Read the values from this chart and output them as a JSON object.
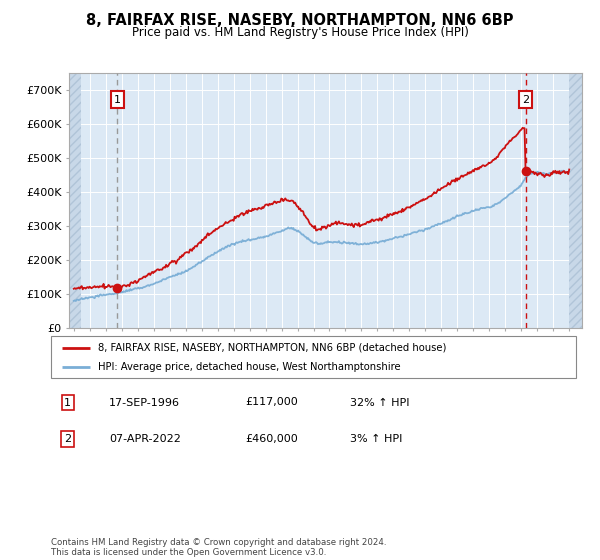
{
  "title": "8, FAIRFAX RISE, NASEBY, NORTHAMPTON, NN6 6BP",
  "subtitle": "Price paid vs. HM Land Registry's House Price Index (HPI)",
  "legend_line1": "8, FAIRFAX RISE, NASEBY, NORTHAMPTON, NN6 6BP (detached house)",
  "legend_line2": "HPI: Average price, detached house, West Northamptonshire",
  "annotation1_date": "17-SEP-1996",
  "annotation1_price": "£117,000",
  "annotation1_hpi": "32% ↑ HPI",
  "annotation2_date": "07-APR-2022",
  "annotation2_price": "£460,000",
  "annotation2_hpi": "3% ↑ HPI",
  "footer": "Contains HM Land Registry data © Crown copyright and database right 2024.\nThis data is licensed under the Open Government Licence v3.0.",
  "sale1_year": 1996.72,
  "sale1_value": 117000,
  "sale2_year": 2022.27,
  "sale2_value": 460000,
  "hpi_color": "#7aaed6",
  "price_color": "#cc1111",
  "vline1_color": "#aaaaaa",
  "vline2_color": "#cc1111",
  "annotation_border_color": "#cc1111",
  "background_plot": "#dce9f5",
  "background_hatch": "#c8d8e8",
  "ylim_min": 0,
  "ylim_max": 750000,
  "xlim_min": 1993.7,
  "xlim_max": 2025.8,
  "hatch_left_end": 1994.42,
  "hatch_right_start": 2025.0
}
